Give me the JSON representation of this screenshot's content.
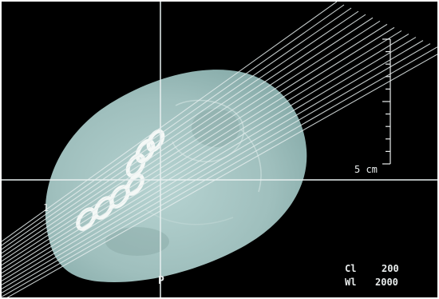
{
  "scan": {
    "scale_label": "5 cm",
    "side_marker": "1",
    "posterior_marker": "P",
    "window": {
      "center_label": "Cl",
      "center_value": "200",
      "width_label": "Wl",
      "width_value": "2000"
    }
  },
  "colors": {
    "background": "#000000",
    "tissue": "#a9c7c5",
    "bone": "#f2f6f4",
    "guide_lines": "#e6eeee"
  }
}
